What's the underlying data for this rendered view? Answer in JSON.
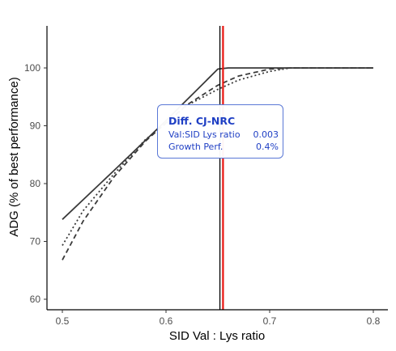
{
  "chart_data": {
    "type": "line",
    "xlabel": "SID Val : Lys ratio",
    "ylabel": "ADG (% of best performance)",
    "xlim": [
      0.5,
      0.8
    ],
    "ylim": [
      60,
      100
    ],
    "xticks": [
      "0.5",
      "0.6",
      "0.7",
      "0.8"
    ],
    "yticks": [
      "60",
      "70",
      "80",
      "90",
      "100"
    ],
    "grid": false,
    "legend": "none",
    "series": [
      {
        "style": "solid",
        "x": [
          0.5,
          0.55,
          0.6,
          0.65,
          0.66,
          0.7,
          0.75,
          0.8
        ],
        "y": [
          73.8,
          82.3,
          90.9,
          99.8,
          100,
          100,
          100,
          100
        ]
      },
      {
        "style": "dashed",
        "x": [
          0.5,
          0.52,
          0.55,
          0.58,
          0.6,
          0.62,
          0.65,
          0.67,
          0.7,
          0.72,
          0.75,
          0.8
        ],
        "y": [
          66.8,
          73.5,
          81.2,
          87.3,
          90.5,
          93.6,
          97.0,
          98.6,
          99.8,
          100,
          100,
          100
        ]
      },
      {
        "style": "dotted",
        "x": [
          0.5,
          0.52,
          0.55,
          0.58,
          0.6,
          0.62,
          0.65,
          0.67,
          0.7,
          0.72,
          0.75,
          0.8
        ],
        "y": [
          69.3,
          75.3,
          81.7,
          87.6,
          90.4,
          93.5,
          96.3,
          97.9,
          99.4,
          100,
          100,
          100
        ]
      }
    ],
    "vlines": [
      {
        "x": 0.652,
        "color": "#000000"
      },
      {
        "x": 0.655,
        "color": "#e8140f"
      }
    ],
    "annotation": {
      "title": "Diff. CJ-NRC",
      "rows": [
        {
          "label": "Val:SID Lys ratio",
          "value": "0.003"
        },
        {
          "label": "Growth Perf.",
          "value": "0.4%"
        }
      ],
      "color": "#1f3fc4"
    }
  }
}
